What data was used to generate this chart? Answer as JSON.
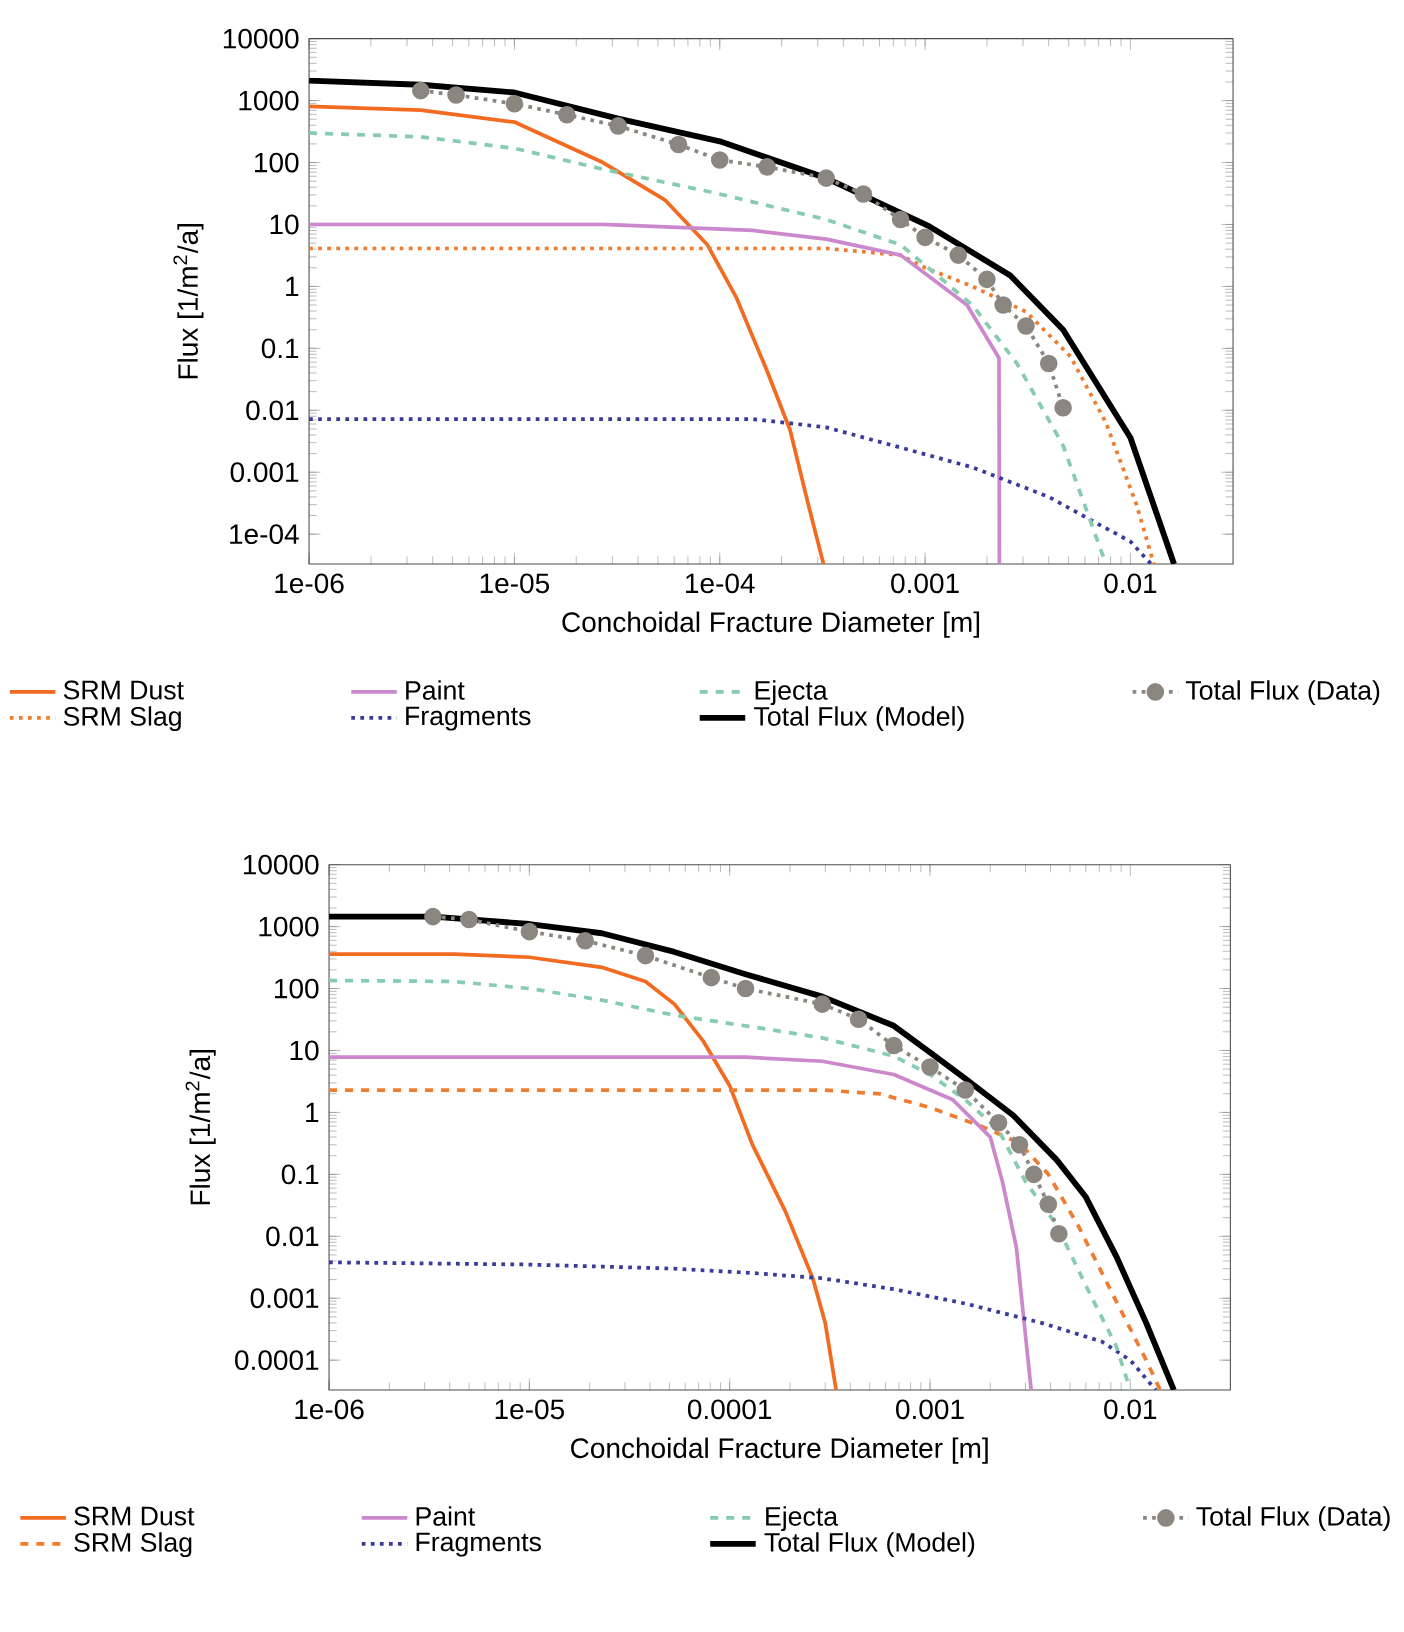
{
  "chart_data": [
    {
      "type": "line",
      "xlabel": "Conchoidal Fracture Diameter [m]",
      "ylabel": "Flux [1/m$^{2}$/a]",
      "log": "xy",
      "xlim": [
        1e-06,
        0.0316
      ],
      "ylim": [
        3.3e-05,
        10000
      ],
      "xticks": [
        {
          "value": 1e-06,
          "label": "1e-06"
        },
        {
          "value": 1e-05,
          "label": "1e-05"
        },
        {
          "value": 0.0001,
          "label": "1e-04"
        },
        0.001,
        0.01
      ],
      "yticks": [
        {
          "value": 0.0001,
          "label": "1e-04"
        },
        0.001,
        0.01,
        0.1,
        1,
        10,
        100,
        1000,
        10000
      ],
      "legend": "bottom",
      "series": [
        {
          "name": "SRM Dust",
          "color": "#f26b21",
          "line_style": "solid",
          "marker": "none",
          "x": [
            1e-06,
            3.5e-06,
            1e-05,
            2.7e-05,
            5.4e-05,
            8.7e-05,
            0.00012,
            0.00017,
            0.00022,
            0.00027,
            0.00032
          ],
          "values": [
            810,
            700,
            450,
            100,
            25,
            4.7,
            0.68,
            0.043,
            0.0048,
            0.0003,
            3.3e-05
          ]
        },
        {
          "name": "SRM Slag",
          "color": "#f07c30",
          "line_style": "dotted",
          "marker": "none",
          "x": [
            1e-06,
            0.00033,
            0.00076,
            0.001,
            0.0017,
            0.0031,
            0.0051,
            0.0076,
            0.0107,
            0.013
          ],
          "values": [
            4.1,
            4.1,
            3.2,
            2,
            1.0,
            0.39,
            0.074,
            0.0063,
            0.0003,
            3.3e-05
          ]
        },
        {
          "name": "Paint",
          "color": "#cc88cc",
          "line_style": "solid",
          "marker": "none",
          "x": [
            1e-06,
            2.7e-05,
            0.000145,
            0.00033,
            0.00076,
            0.0016,
            0.00229,
            0.0023
          ],
          "values": [
            10,
            10,
            8,
            5.8,
            3.2,
            0.5,
            0.07,
            3.3e-05
          ]
        },
        {
          "name": "Fragments",
          "color": "#3a3a9a",
          "line_style": "dotted",
          "marker": "none",
          "x": [
            1e-06,
            0.000145,
            0.00033,
            0.00076,
            0.0017,
            0.004,
            0.0064,
            0.01,
            0.0126
          ],
          "values": [
            0.0072,
            0.0072,
            0.0053,
            0.0025,
            0.0012,
            0.0004,
            0.00017,
            7.6e-05,
            3.3e-05
          ]
        },
        {
          "name": "Ejecta",
          "color": "#88ccb0",
          "line_style": "dashed",
          "marker": "none",
          "x": [
            1e-06,
            3.5e-06,
            1e-05,
            2.7e-05,
            9.6e-05,
            0.00033,
            0.00076,
            0.00115,
            0.0017,
            0.0028,
            0.0047,
            0.0076
          ],
          "values": [
            300,
            260,
            170,
            78,
            32,
            12,
            4.7,
            1.5,
            0.5,
            0.057,
            0.0027,
            3.3e-05
          ]
        },
        {
          "name": "Total Flux (Model)",
          "color": "#000000",
          "line_style": "solid",
          "marker": "none",
          "x": [
            1e-06,
            3.5e-06,
            1e-05,
            3.2e-05,
            0.0001,
            0.00033,
            0.00105,
            0.0026,
            0.0047,
            0.01,
            0.0163
          ],
          "values": [
            2100,
            1800,
            1350,
            510,
            220,
            56,
            9.3,
            1.5,
            0.2,
            0.0036,
            3.3e-05
          ]
        },
        {
          "name": "Total Flux (Data)",
          "color": "#8c8680",
          "line_style": "dotted",
          "marker": "circle",
          "x": [
            3.5e-06,
            5.2e-06,
            1e-05,
            1.8e-05,
            3.2e-05,
            6.3e-05,
            0.0001,
            0.00017,
            0.00033,
            0.0005,
            0.00076,
            0.001,
            0.00145,
            0.002,
            0.0024,
            0.0031,
            0.004,
            0.0047
          ],
          "values": [
            1450,
            1230,
            890,
            590,
            390,
            195,
            110,
            85,
            56,
            31,
            12,
            6.2,
            3.2,
            1.3,
            0.5,
            0.23,
            0.057,
            0.011
          ]
        }
      ]
    },
    {
      "type": "line",
      "xlabel": "Conchoidal Fracture Diameter [m]",
      "ylabel": "Flux [1/m$^{2}$/a]",
      "log": "xy",
      "xlim": [
        1e-06,
        0.0316
      ],
      "ylim": [
        3.3e-05,
        10000
      ],
      "xticks": [
        {
          "value": 1e-06,
          "label": "1e-06"
        },
        {
          "value": 1e-05,
          "label": "1e-05"
        },
        0.0001,
        0.001,
        0.01
      ],
      "yticks": [
        0.0001,
        0.001,
        0.01,
        0.1,
        1,
        10,
        100,
        1000,
        10000
      ],
      "legend": "bottom",
      "series": [
        {
          "name": "SRM Dust",
          "color": "#f26b21",
          "line_style": "solid",
          "marker": "none",
          "x": [
            1e-06,
            4.2e-06,
            1e-05,
            2.3e-05,
            3.8e-05,
            5.3e-05,
            7.4e-05,
            0.0001,
            0.00013,
            0.00019,
            0.00026,
            0.0003,
            0.00034
          ],
          "values": [
            360,
            360,
            320,
            220,
            130,
            56,
            14,
            2.7,
            0.3,
            0.025,
            0.0021,
            0.0004,
            3.3e-05
          ]
        },
        {
          "name": "SRM Slag",
          "color": "#f07c30",
          "line_style": "dashed",
          "marker": "none",
          "x": [
            1e-06,
            0.00029,
            0.00056,
            0.001,
            0.0018,
            0.0028,
            0.0039,
            0.0055,
            0.0085,
            0.012,
            0.0141
          ],
          "values": [
            2.3,
            2.3,
            2.0,
            1.2,
            0.6,
            0.32,
            0.1,
            0.0147,
            0.0009,
            0.0001,
            3.3e-05
          ]
        },
        {
          "name": "Paint",
          "color": "#cc88cc",
          "line_style": "solid",
          "marker": "none",
          "x": [
            1e-06,
            0.00012,
            0.00029,
            0.00066,
            0.0013,
            0.002,
            0.0023,
            0.0027,
            0.0029,
            0.0032
          ],
          "values": [
            7.8,
            7.8,
            6.7,
            4.1,
            1.6,
            0.4,
            0.076,
            0.0066,
            0.0007,
            3.3e-05
          ]
        },
        {
          "name": "Fragments",
          "color": "#3a3a9a",
          "line_style": "dotted",
          "marker": "none",
          "x": [
            1e-06,
            1e-05,
            5.3e-05,
            0.00012,
            0.00029,
            0.00066,
            0.0015,
            0.0036,
            0.0072,
            0.01,
            0.0134
          ],
          "values": [
            0.0038,
            0.0035,
            0.003,
            0.0026,
            0.0021,
            0.0014,
            0.00082,
            0.0004,
            0.0002,
            0.0001,
            3.3e-05
          ]
        },
        {
          "name": "Ejecta",
          "color": "#88ccb0",
          "line_style": "dashed",
          "marker": "none",
          "x": [
            1e-06,
            4.2e-06,
            1e-05,
            2.3e-05,
            5.3e-05,
            0.00012,
            0.00029,
            0.00066,
            0.001,
            0.0015,
            0.0022,
            0.003,
            0.0043,
            0.006,
            0.0085,
            0.01
          ],
          "values": [
            135,
            130,
            100,
            65,
            37,
            25,
            16,
            8.1,
            4.1,
            1.6,
            0.52,
            0.076,
            0.015,
            0.0016,
            0.00017,
            3.3e-05
          ]
        },
        {
          "name": "Total Flux (Model)",
          "color": "#000000",
          "line_style": "solid",
          "marker": "none",
          "x": [
            1e-06,
            3.3e-06,
            1e-05,
            2.3e-05,
            5.3e-05,
            0.00012,
            0.00029,
            0.00066,
            0.001,
            0.0015,
            0.0026,
            0.0043,
            0.006,
            0.0085,
            0.012,
            0.0165
          ],
          "values": [
            1450,
            1450,
            1100,
            780,
            390,
            170,
            74,
            25,
            9.3,
            3.5,
            0.9,
            0.17,
            0.043,
            0.0048,
            0.0004,
            3.3e-05
          ]
        },
        {
          "name": "Total Flux (Data)",
          "color": "#8c8680",
          "line_style": "dotted",
          "marker": "circle",
          "x": [
            3.3e-06,
            5e-06,
            1e-05,
            1.9e-05,
            3.8e-05,
            8.1e-05,
            0.00012,
            0.00029,
            0.00044,
            0.00066,
            0.001,
            0.0015,
            0.0022,
            0.0028,
            0.0033,
            0.0039,
            0.0044
          ],
          "values": [
            1450,
            1300,
            830,
            590,
            340,
            150,
            100,
            56,
            32,
            12,
            5.4,
            2.3,
            0.68,
            0.3,
            0.1,
            0.033,
            0.011
          ]
        }
      ]
    }
  ]
}
